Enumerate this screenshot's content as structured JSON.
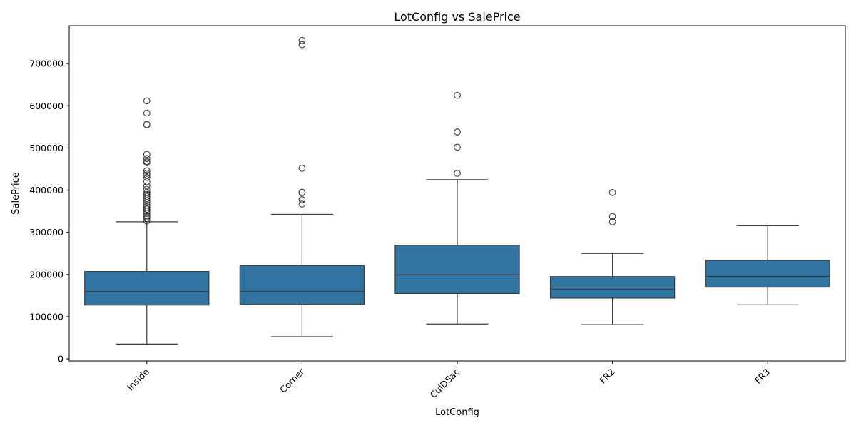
{
  "chart_data": {
    "type": "box",
    "title": "LotConfig vs SalePrice",
    "xlabel": "LotConfig",
    "ylabel": "SalePrice",
    "ylim": [
      -5000,
      790000
    ],
    "yticks": [
      0,
      100000,
      200000,
      300000,
      400000,
      500000,
      600000,
      700000
    ],
    "grid": false,
    "box_color": "#3274a1",
    "line_color": "#3d3d3d",
    "categories": [
      "Inside",
      "Corner",
      "CulDSac",
      "FR2",
      "FR3"
    ],
    "boxes": [
      {
        "category": "Inside",
        "whisker_low": 34900,
        "q1": 127500,
        "median": 159700,
        "q3": 207000,
        "whisker_high": 325000,
        "outliers": [
          327000,
          333000,
          337000,
          340000,
          345000,
          350000,
          355000,
          360000,
          365000,
          370000,
          375000,
          380000,
          385000,
          390000,
          395000,
          402000,
          410000,
          420000,
          430000,
          436000,
          440000,
          446000,
          465000,
          468000,
          475000,
          485000,
          555000,
          556000,
          582900,
          611657
        ]
      },
      {
        "category": "Corner",
        "whisker_low": 52500,
        "q1": 129000,
        "median": 160000,
        "q3": 221000,
        "whisker_high": 342643,
        "outliers": [
          367000,
          377500,
          394000,
          395000,
          451950,
          745000,
          755000
        ]
      },
      {
        "category": "CulDSac",
        "whisker_low": 82500,
        "q1": 155000,
        "median": 199262,
        "q3": 269500,
        "whisker_high": 424870,
        "outliers": [
          440000,
          501837,
          538000,
          625000
        ]
      },
      {
        "category": "FR2",
        "whisker_low": 81000,
        "q1": 144000,
        "median": 165000,
        "q3": 195000,
        "whisker_high": 250000,
        "outliers": [
          325000,
          337500,
          394432
        ]
      },
      {
        "category": "FR3",
        "whisker_low": 128000,
        "q1": 170000,
        "median": 195450,
        "q3": 233500,
        "whisker_high": 315750,
        "outliers": []
      }
    ]
  }
}
